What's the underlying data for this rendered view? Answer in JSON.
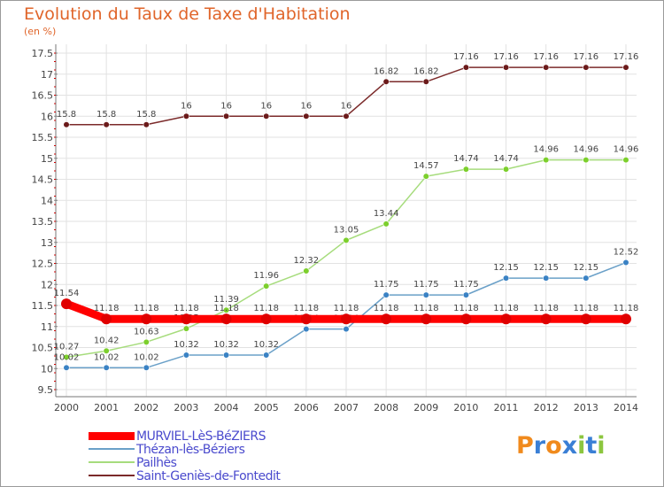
{
  "header": {
    "title": "Evolution du Taux de Taxe d'Habitation",
    "unit": "(en %)"
  },
  "logo": {
    "text": "Proxiti",
    "letters": [
      "P",
      "r",
      "o",
      "x",
      "i",
      "t",
      "i"
    ],
    "colors": [
      "#f08a1d",
      "#3a7fd5",
      "#f08a1d",
      "#3a7fd5",
      "#8cc63f",
      "#3a7fd5",
      "#8cc63f"
    ]
  },
  "chart_data": {
    "type": "line",
    "title": "Evolution du Taux de Taxe d'Habitation",
    "ylabel": "(en %)",
    "xlabel": "",
    "ylim": [
      9.5,
      17.5
    ],
    "yticks": [
      9.5,
      10,
      10.5,
      11,
      11.5,
      12,
      12.5,
      13,
      13.5,
      14,
      14.5,
      15,
      15.5,
      16,
      16.5,
      17,
      17.5
    ],
    "ytick_labels": [
      "9.5",
      "10",
      "10.5",
      "11",
      "11.5",
      "12",
      "12.5",
      "13",
      "13.5",
      "14",
      "14.5",
      "15",
      "15.5",
      "16",
      "16.5",
      "17",
      "17.5"
    ],
    "grid": true,
    "legend_position": "bottom-left",
    "categories": [
      "2000",
      "2001",
      "2002",
      "2003",
      "2004",
      "2005",
      "2006",
      "2007",
      "2008",
      "2009",
      "2010",
      "2011",
      "2012",
      "2013",
      "2014"
    ],
    "series": [
      {
        "name": "Saint-Geniès-de-Fontedit",
        "color": "#7b2a2a",
        "point_color": "#6b1a1a",
        "values": [
          15.8,
          15.8,
          15.8,
          16,
          16,
          16,
          16,
          16,
          16.82,
          16.82,
          17.16,
          17.16,
          17.16,
          17.16,
          17.16
        ],
        "labels": [
          "15.8",
          "15.8",
          "15.8",
          "16",
          "16",
          "16",
          "16",
          "16",
          "16.82",
          "16.82",
          "17.16",
          "17.16",
          "17.16",
          "17.16",
          "17.16"
        ]
      },
      {
        "name": "Pailhès",
        "color": "#a6dc7c",
        "point_color": "#7ccf2c",
        "values": [
          10.27,
          10.42,
          10.63,
          10.95,
          11.39,
          11.96,
          12.32,
          13.05,
          13.44,
          14.57,
          14.74,
          14.74,
          14.96,
          14.96,
          14.96
        ],
        "labels": [
          "10.27",
          "10.42",
          "10.63",
          "10.95",
          "11.39",
          "11.96",
          "12.32",
          "13.05",
          "13.44",
          "14.57",
          "14.74",
          "14.74",
          "14.96",
          "14.96",
          "14.96"
        ]
      },
      {
        "name": "Thézan-lès-Béziers",
        "color": "#6aa0c8",
        "point_color": "#3a82c4",
        "values": [
          10.02,
          10.02,
          10.02,
          10.32,
          10.32,
          10.32,
          10.94,
          10.94,
          11.75,
          11.75,
          11.75,
          12.15,
          12.15,
          12.15,
          12.52
        ],
        "labels": [
          "10.02",
          "10.02",
          "10.02",
          "10.32",
          "10.32",
          "10.32",
          "10.94",
          "10.94",
          "11.75",
          "11.75",
          "11.75",
          "12.15",
          "12.15",
          "12.15",
          "12.52"
        ]
      },
      {
        "name": "MURVIEL-LèS-BéZIERS",
        "color": "#ff0000",
        "point_color": "#e00000",
        "values": [
          11.54,
          11.18,
          11.18,
          11.18,
          11.18,
          11.18,
          11.18,
          11.18,
          11.18,
          11.18,
          11.18,
          11.18,
          11.18,
          11.18,
          11.18
        ],
        "labels": [
          "11.54",
          "11.18",
          "11.18",
          "11.18",
          "11.18",
          "11.18",
          "11.18",
          "11.18",
          "11.18",
          "11.18",
          "11.18",
          "11.18",
          "11.18",
          "11.18",
          "11.18"
        ]
      }
    ],
    "legend": [
      {
        "name": "MURVIEL-LèS-BéZIERS",
        "color": "#ff0000"
      },
      {
        "name": "Thézan-lès-Béziers",
        "color": "#6aa0c8"
      },
      {
        "name": "Pailhès",
        "color": "#a6dc7c"
      },
      {
        "name": "Saint-Geniès-de-Fontedit",
        "color": "#7b2a2a"
      }
    ]
  }
}
